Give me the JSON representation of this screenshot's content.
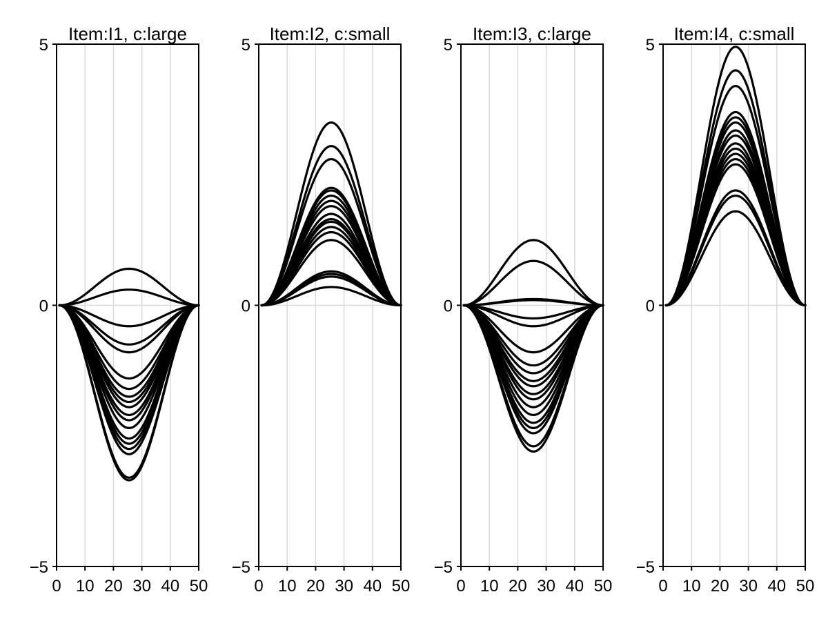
{
  "chart_data": [
    {
      "type": "line",
      "title": "Item:I1, c:large",
      "xlim": [
        0,
        50
      ],
      "ylim": [
        -5,
        5
      ],
      "xticks": [
        "0",
        "10",
        "20",
        "30",
        "40",
        "50"
      ],
      "yticks": [
        "−5",
        "0",
        "5"
      ],
      "grid": true,
      "curve_shape": "bump from x=1 to x=50, peak at x=25.5",
      "peaks": [
        0.7,
        0.3,
        -0.4,
        -0.75,
        -0.9,
        -1.4,
        -1.6,
        -1.75,
        -1.85,
        -1.95,
        -2.1,
        -2.2,
        -2.35,
        -2.55,
        -2.65,
        -2.75,
        -2.85,
        -3.3,
        -3.35
      ]
    },
    {
      "type": "line",
      "title": "Item:I2, c:small",
      "xlim": [
        0,
        50
      ],
      "ylim": [
        -5,
        5
      ],
      "xticks": [
        "0",
        "10",
        "20",
        "30",
        "40",
        "50"
      ],
      "yticks": [
        "−5",
        "0",
        "5"
      ],
      "grid": true,
      "curve_shape": "bump from x=1 to x=50, peak at x=25.5",
      "peaks": [
        3.5,
        3.05,
        2.8,
        2.25,
        2.2,
        2.1,
        2.0,
        1.9,
        1.75,
        1.65,
        1.6,
        1.5,
        1.4,
        1.25,
        0.65,
        0.6,
        0.55,
        0.35
      ]
    },
    {
      "type": "line",
      "title": "Item:I3, c:large",
      "xlim": [
        0,
        50
      ],
      "ylim": [
        -5,
        5
      ],
      "xticks": [
        "0",
        "10",
        "20",
        "30",
        "40",
        "50"
      ],
      "yticks": [
        "−5",
        "0",
        "5"
      ],
      "grid": true,
      "curve_shape": "bump from x=1 to x=50, peak at x=25.5",
      "peaks": [
        1.25,
        0.85,
        0.12,
        0.1,
        -0.25,
        -0.4,
        -0.9,
        -1.15,
        -1.3,
        -1.45,
        -1.55,
        -1.7,
        -1.8,
        -1.95,
        -2.1,
        -2.25,
        -2.35,
        -2.45,
        -2.7,
        -2.8
      ]
    },
    {
      "type": "line",
      "title": "Item:I4, c:small",
      "xlim": [
        0,
        50
      ],
      "ylim": [
        -5,
        5
      ],
      "xticks": [
        "0",
        "10",
        "20",
        "30",
        "40",
        "50"
      ],
      "yticks": [
        "−5",
        "0",
        "5"
      ],
      "grid": true,
      "curve_shape": "bump from x=1 to x=50, peak at x=25.5",
      "peaks": [
        4.95,
        4.5,
        4.2,
        3.7,
        3.6,
        3.5,
        3.35,
        3.25,
        3.1,
        3.0,
        2.9,
        2.8,
        2.7,
        2.2,
        2.1,
        1.8
      ]
    }
  ]
}
